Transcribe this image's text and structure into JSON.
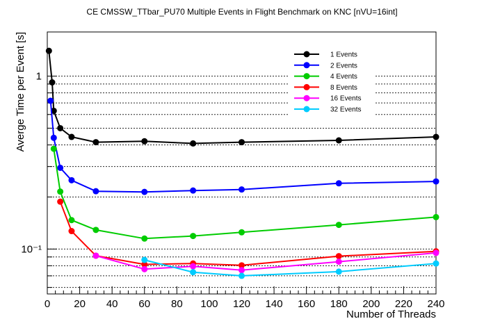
{
  "chart_data": {
    "type": "line",
    "title": "CE CMSSW_TTbar_PU70 Multiple Events in Flight Benchmark on KNC [nVU=16int]",
    "xlabel": "Number of Threads",
    "ylabel": "Averge Time per Event [s]",
    "xlim": [
      0,
      240
    ],
    "ylim": [
      0.055,
      1.8
    ],
    "yscale": "log",
    "grid": "horizontal-dashed",
    "legend_position": "top-right",
    "x_ticks": [
      0,
      20,
      40,
      60,
      80,
      100,
      120,
      140,
      160,
      180,
      200,
      220,
      240
    ],
    "y_tick_labels": [
      {
        "value": 1,
        "label": "1"
      },
      {
        "value": 0.1,
        "label": "10⁻¹"
      }
    ],
    "series": [
      {
        "name": "1 Events",
        "color": "#000000",
        "x": [
          1,
          3,
          4,
          8,
          15,
          30,
          60,
          90,
          120,
          180,
          240
        ],
        "y": [
          1.4,
          0.92,
          0.63,
          0.5,
          0.445,
          0.415,
          0.42,
          0.408,
          0.415,
          0.425,
          0.445
        ]
      },
      {
        "name": "2 Events",
        "color": "#0000ff",
        "x": [
          2,
          4,
          8,
          15,
          30,
          60,
          90,
          120,
          180,
          240
        ],
        "y": [
          0.72,
          0.44,
          0.295,
          0.25,
          0.216,
          0.214,
          0.218,
          0.221,
          0.24,
          0.246
        ]
      },
      {
        "name": "4 Events",
        "color": "#00cc00",
        "x": [
          4,
          8,
          15,
          30,
          60,
          90,
          120,
          180,
          240
        ],
        "y": [
          0.38,
          0.215,
          0.147,
          0.129,
          0.115,
          0.119,
          0.125,
          0.138,
          0.153
        ]
      },
      {
        "name": "8 Events",
        "color": "#ff0000",
        "x": [
          8,
          15,
          30,
          60,
          90,
          120,
          180,
          240
        ],
        "y": [
          0.188,
          0.127,
          0.0915,
          0.0815,
          0.0825,
          0.0805,
          0.091,
          0.097
        ]
      },
      {
        "name": "16 Events",
        "color": "#ff00ff",
        "x": [
          30,
          60,
          90,
          120,
          180,
          240
        ],
        "y": [
          0.0915,
          0.0765,
          0.0795,
          0.0755,
          0.0845,
          0.095
        ]
      },
      {
        "name": "32 Events",
        "color": "#00ccff",
        "x": [
          60,
          90,
          120,
          180,
          240
        ],
        "y": [
          0.0865,
          0.0735,
          0.07,
          0.074,
          0.0825
        ]
      }
    ]
  }
}
